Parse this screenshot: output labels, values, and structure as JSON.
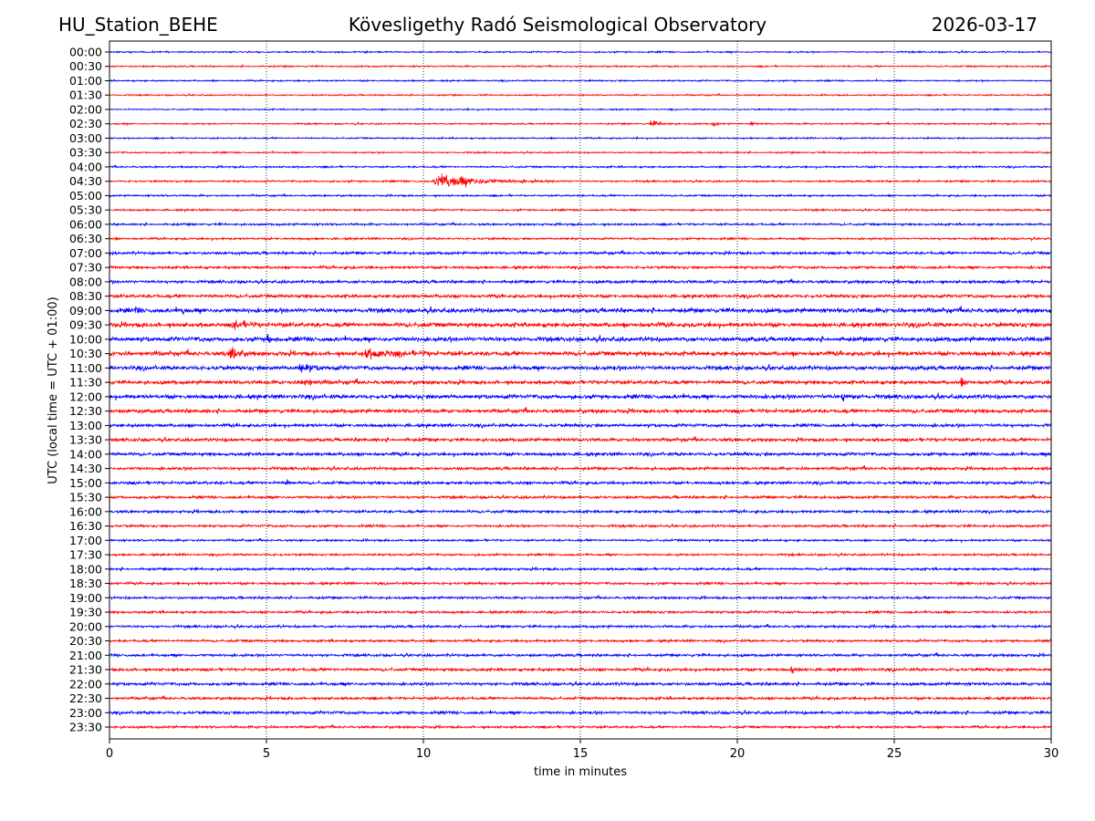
{
  "header": {
    "station": "HU_Station_BEHE",
    "observatory": "Kövesligethy Radó Seismological Observatory",
    "date": "2026-03-17"
  },
  "chart_data": {
    "type": "line",
    "title": "Kövesligethy Radó Seismological Observatory",
    "xlabel": "time in minutes",
    "ylabel": "UTC (local time = UTC + 01:00)",
    "xlim": [
      0,
      30
    ],
    "xticks": [
      0,
      5,
      10,
      15,
      20,
      25,
      30
    ],
    "grid": "vertical dotted at 5-minute intervals",
    "colors": [
      "#0000ff",
      "#ff0000"
    ],
    "rows": [
      "00:00",
      "00:30",
      "01:00",
      "01:30",
      "02:00",
      "02:30",
      "03:00",
      "03:30",
      "04:00",
      "04:30",
      "05:00",
      "05:30",
      "06:00",
      "06:30",
      "07:00",
      "07:30",
      "08:00",
      "08:30",
      "09:00",
      "09:30",
      "10:00",
      "10:30",
      "11:00",
      "11:30",
      "12:00",
      "12:30",
      "13:00",
      "13:30",
      "14:00",
      "14:30",
      "15:00",
      "15:30",
      "16:00",
      "16:30",
      "17:00",
      "17:30",
      "18:00",
      "18:30",
      "19:00",
      "19:30",
      "20:00",
      "20:30",
      "21:00",
      "21:30",
      "22:00",
      "22:30",
      "23:00",
      "23:30"
    ],
    "noise_level": [
      0.1,
      0.1,
      0.1,
      0.09,
      0.09,
      0.1,
      0.1,
      0.1,
      0.12,
      0.12,
      0.12,
      0.12,
      0.14,
      0.14,
      0.18,
      0.18,
      0.2,
      0.22,
      0.3,
      0.3,
      0.3,
      0.3,
      0.28,
      0.25,
      0.28,
      0.25,
      0.22,
      0.22,
      0.22,
      0.2,
      0.2,
      0.18,
      0.18,
      0.16,
      0.14,
      0.14,
      0.16,
      0.16,
      0.16,
      0.16,
      0.16,
      0.16,
      0.18,
      0.2,
      0.2,
      0.18,
      0.2,
      0.16
    ],
    "events": [
      {
        "row": 5,
        "start": 17.2,
        "duration": 1.0,
        "amplitude": 0.6
      },
      {
        "row": 5,
        "start": 19.2,
        "duration": 0.5,
        "amplitude": 0.4
      },
      {
        "row": 5,
        "start": 20.4,
        "duration": 0.5,
        "amplitude": 0.35
      },
      {
        "row": 9,
        "start": 10.3,
        "duration": 4.5,
        "amplitude": 1.3
      },
      {
        "row": 18,
        "start": 0.8,
        "duration": 0.3,
        "amplitude": 0.6
      },
      {
        "row": 18,
        "start": 2.3,
        "duration": 0.3,
        "amplitude": 0.6
      },
      {
        "row": 19,
        "start": 3.9,
        "duration": 1.2,
        "amplitude": 0.8
      },
      {
        "row": 20,
        "start": 5.0,
        "duration": 0.5,
        "amplitude": 0.9
      },
      {
        "row": 21,
        "start": 3.8,
        "duration": 0.8,
        "amplitude": 1.6
      },
      {
        "row": 21,
        "start": 8.0,
        "duration": 3.5,
        "amplitude": 0.6
      },
      {
        "row": 22,
        "start": 6.0,
        "duration": 1.5,
        "amplitude": 0.6
      },
      {
        "row": 23,
        "start": 6.1,
        "duration": 1.0,
        "amplitude": 0.7
      },
      {
        "row": 23,
        "start": 27.1,
        "duration": 0.5,
        "amplitude": 0.6
      },
      {
        "row": 24,
        "start": 23.3,
        "duration": 1.0,
        "amplitude": 0.5
      },
      {
        "row": 30,
        "start": 5.6,
        "duration": 0.3,
        "amplitude": 0.7
      },
      {
        "row": 43,
        "start": 21.7,
        "duration": 0.4,
        "amplitude": 0.6
      }
    ]
  }
}
